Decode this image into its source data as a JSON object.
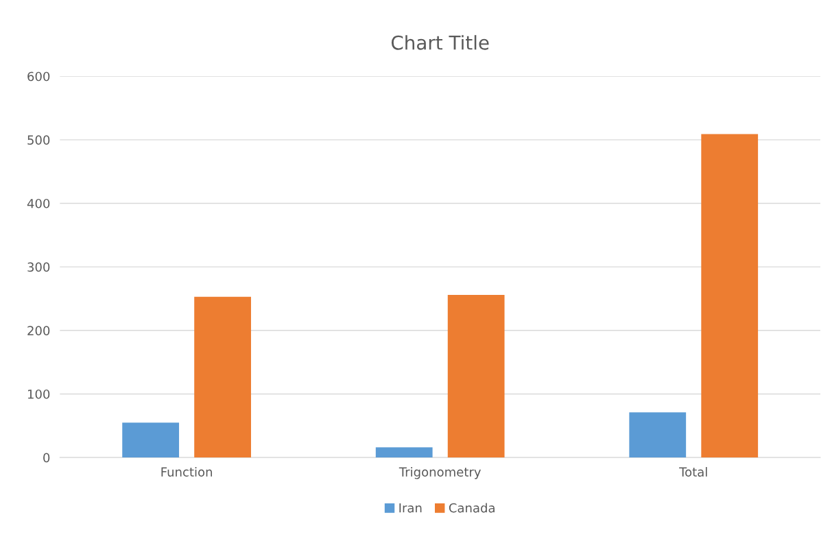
{
  "chart_data": {
    "type": "bar",
    "title": "Chart Title",
    "categories": [
      "Function",
      "Trigonometry",
      "Total"
    ],
    "series": [
      {
        "name": "Iran",
        "color": "#5b9bd5",
        "values": [
          55,
          16,
          71
        ]
      },
      {
        "name": "Canada",
        "color": "#ed7d31",
        "values": [
          253,
          256,
          509
        ]
      }
    ],
    "ylim": [
      0,
      600
    ],
    "yticks": [
      0,
      100,
      200,
      300,
      400,
      500,
      600
    ],
    "grid": "y",
    "legend": "bottom"
  }
}
